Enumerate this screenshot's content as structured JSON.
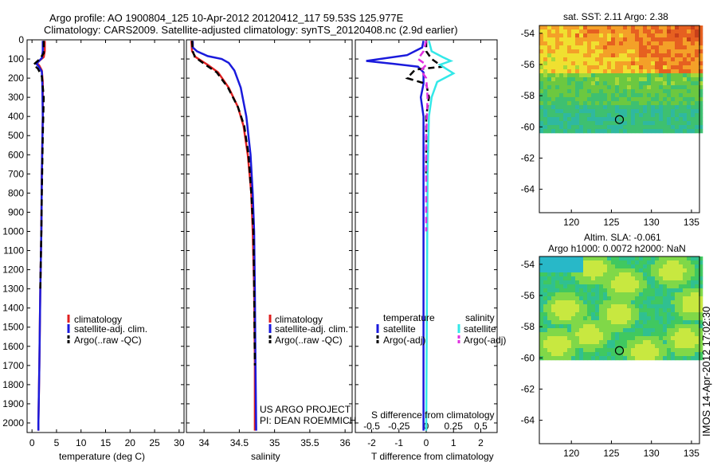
{
  "title": {
    "line1": "Argo profile: AO 1900804_125 10-Apr-2012 20120412_117 59.53S 125.977E",
    "line2": "Climatology: CARS2009. Satellite-adjusted climatology: synTS_20120408.nc (2.9d earlier)"
  },
  "watermark": "IMOS 14-Apr-2012 17:02:30",
  "colors": {
    "climatology": "#e02020",
    "satellite": "#1a1adc",
    "argo": "#000000",
    "sal_satellite": "#33e8e8",
    "sal_argo": "#e030e0"
  },
  "panels": {
    "temperature": {
      "xlabel": "temperature (deg C)",
      "legend": [
        "climatology",
        "satellite-adj. clim.",
        "Argo(..raw -QC)"
      ]
    },
    "salinity": {
      "xlabel": "salinity",
      "legend": [
        "climatology",
        "satellite-adj. clim.",
        "Argo(..raw -QC)"
      ],
      "annotation": [
        "US ARGO PROJECT",
        "PI: DEAN ROEMMICH"
      ]
    },
    "difference": {
      "xlabel": "T difference from climatology",
      "top_label": "S difference from climatology",
      "legend_temp_head": "temperature",
      "legend_sal_head": "salinity",
      "legend_temp": [
        "satellite",
        "Argo(-adj)"
      ],
      "legend_sal": [
        "satellite",
        "Argo(-adj)"
      ]
    },
    "map_sst": {
      "title": "sat. SST: 2.11  Argo: 2.38"
    },
    "map_sla": {
      "title_line1": "Altim. SLA: -0.061",
      "title_line2": "Argo h1000: 0.0072  h2000: NaN"
    }
  },
  "chart_data": [
    {
      "type": "line",
      "id": "temperature",
      "xlabel": "temperature (deg C)",
      "ylabel": "",
      "xlim": [
        -1,
        31
      ],
      "ylim": [
        2050,
        0
      ],
      "xticks": [
        0,
        5,
        10,
        15,
        20,
        25,
        30
      ],
      "yticks": [
        0,
        100,
        200,
        300,
        400,
        500,
        600,
        700,
        800,
        900,
        1000,
        1100,
        1200,
        1300,
        1400,
        1500,
        1600,
        1700,
        1800,
        1900,
        2000
      ],
      "series": [
        {
          "name": "climatology",
          "color": "#e02020",
          "dash": "",
          "points": [
            [
              2.6,
              5
            ],
            [
              2.6,
              60
            ],
            [
              2.4,
              90
            ],
            [
              1.0,
              120
            ],
            [
              1.5,
              135
            ],
            [
              2.0,
              160
            ],
            [
              2.2,
              220
            ],
            [
              2.2,
              400
            ],
            [
              2.0,
              700
            ],
            [
              1.9,
              1000
            ],
            [
              1.7,
              1300
            ],
            [
              1.5,
              1700
            ],
            [
              1.3,
              2000
            ],
            [
              1.3,
              2040
            ]
          ]
        },
        {
          "name": "satellite-adj. clim.",
          "color": "#1a1adc",
          "dash": "",
          "points": [
            [
              2.2,
              5
            ],
            [
              2.2,
              60
            ],
            [
              2.0,
              95
            ],
            [
              0.9,
              125
            ],
            [
              1.4,
              140
            ],
            [
              2.0,
              165
            ],
            [
              2.1,
              230
            ],
            [
              2.2,
              400
            ],
            [
              2.0,
              700
            ],
            [
              1.9,
              1000
            ],
            [
              1.7,
              1300
            ],
            [
              1.5,
              1700
            ],
            [
              1.3,
              2000
            ],
            [
              1.3,
              2040
            ]
          ]
        },
        {
          "name": "Argo(..raw -QC)",
          "color": "#000000",
          "dash": "8,5",
          "points": [
            [
              2.4,
              5
            ],
            [
              2.4,
              70
            ],
            [
              1.6,
              100
            ],
            [
              0.3,
              130
            ],
            [
              1.2,
              150
            ],
            [
              2.0,
              190
            ],
            [
              2.4,
              300
            ],
            [
              2.2,
              500
            ],
            [
              2.0,
              800
            ],
            [
              1.9,
              1000
            ],
            [
              1.7,
              1300
            ]
          ]
        }
      ]
    },
    {
      "type": "line",
      "id": "salinity",
      "xlabel": "salinity",
      "ylabel": "",
      "xlim": [
        33.75,
        36.1
      ],
      "ylim": [
        2050,
        0
      ],
      "xticks": [
        34,
        34.5,
        35,
        35.5,
        36
      ],
      "series": [
        {
          "name": "climatology",
          "color": "#e02020",
          "dash": "",
          "points": [
            [
              33.82,
              5
            ],
            [
              33.83,
              60
            ],
            [
              33.88,
              90
            ],
            [
              34.05,
              130
            ],
            [
              34.2,
              170
            ],
            [
              34.35,
              250
            ],
            [
              34.48,
              350
            ],
            [
              34.56,
              450
            ],
            [
              34.62,
              600
            ],
            [
              34.67,
              800
            ],
            [
              34.69,
              1000
            ],
            [
              34.71,
              1300
            ],
            [
              34.72,
              1700
            ],
            [
              34.72,
              2040
            ]
          ]
        },
        {
          "name": "satellite-adj. clim.",
          "color": "#1a1adc",
          "dash": "",
          "points": [
            [
              33.84,
              5
            ],
            [
              33.84,
              40
            ],
            [
              33.9,
              60
            ],
            [
              34.05,
              85
            ],
            [
              34.25,
              100
            ],
            [
              34.35,
              120
            ],
            [
              34.43,
              160
            ],
            [
              34.52,
              250
            ],
            [
              34.6,
              400
            ],
            [
              34.66,
              600
            ],
            [
              34.69,
              800
            ],
            [
              34.71,
              1000
            ],
            [
              34.72,
              1300
            ],
            [
              34.73,
              1700
            ],
            [
              34.74,
              2040
            ]
          ]
        },
        {
          "name": "Argo(..raw -QC)",
          "color": "#000000",
          "dash": "8,5",
          "points": [
            [
              33.83,
              5
            ],
            [
              33.84,
              60
            ],
            [
              33.87,
              90
            ],
            [
              34.02,
              130
            ],
            [
              34.18,
              170
            ],
            [
              34.34,
              250
            ],
            [
              34.48,
              350
            ],
            [
              34.57,
              450
            ],
            [
              34.63,
              600
            ],
            [
              34.67,
              800
            ],
            [
              34.7,
              1000
            ],
            [
              34.71,
              1300
            ],
            [
              34.72,
              1700
            ]
          ]
        }
      ]
    },
    {
      "type": "line",
      "id": "difference",
      "xlabel": "T difference from climatology",
      "top_label": "S difference from climatology",
      "xlim": [
        -2.6,
        2.6
      ],
      "ylim": [
        2050,
        0
      ],
      "xticks": [
        -2,
        -1,
        0,
        1,
        2
      ],
      "top_ticks": [
        "-0.5",
        "-0.25",
        "0",
        "0.25",
        "0.5"
      ],
      "series": [
        {
          "name": "temperature satellite",
          "color": "#1a1adc",
          "dash": "",
          "points": [
            [
              -0.1,
              5
            ],
            [
              -0.15,
              40
            ],
            [
              -0.7,
              80
            ],
            [
              -2.2,
              110
            ],
            [
              -1.2,
              125
            ],
            [
              -0.3,
              140
            ],
            [
              -0.1,
              170
            ],
            [
              -0.1,
              230
            ],
            [
              -0.2,
              300
            ],
            [
              -0.1,
              400
            ],
            [
              -0.1,
              2040
            ]
          ]
        },
        {
          "name": "temperature Argo(-adj)",
          "color": "#000000",
          "dash": "8,5",
          "points": [
            [
              0.0,
              5
            ],
            [
              0.0,
              60
            ],
            [
              0.2,
              100
            ],
            [
              0.6,
              140
            ],
            [
              -0.4,
              155
            ],
            [
              -0.7,
              200
            ],
            [
              0.0,
              230
            ],
            [
              0.1,
              300
            ],
            [
              0.0,
              400
            ],
            [
              0.0,
              700
            ]
          ]
        },
        {
          "name": "salinity satellite",
          "color": "#33e8e8",
          "dash": "",
          "points": [
            [
              0.1,
              5
            ],
            [
              0.2,
              60
            ],
            [
              0.6,
              90
            ],
            [
              0.9,
              110
            ],
            [
              0.5,
              130
            ],
            [
              1.0,
              175
            ],
            [
              0.4,
              220
            ],
            [
              0.2,
              300
            ],
            [
              0.1,
              400
            ],
            [
              0.05,
              700
            ],
            [
              0.0,
              2040
            ]
          ]
        },
        {
          "name": "salinity Argo(-adj)",
          "color": "#e030e0",
          "dash": "8,5",
          "points": [
            [
              0.0,
              5
            ],
            [
              -0.1,
              60
            ],
            [
              -0.3,
              100
            ],
            [
              0.0,
              130
            ],
            [
              -0.2,
              160
            ],
            [
              0.0,
              200
            ],
            [
              0.05,
              300
            ],
            [
              0.0,
              500
            ],
            [
              0.0,
              1000
            ]
          ]
        }
      ]
    },
    {
      "type": "heatmap",
      "id": "map_sst",
      "title": "sat. SST: 2.11  Argo: 2.38",
      "xlim": [
        116,
        136
      ],
      "ylim": [
        -65.5,
        -53.5
      ],
      "xticks": [
        120,
        125,
        130,
        135
      ],
      "yticks": [
        -54,
        -56,
        -58,
        -60,
        -62,
        -64
      ],
      "data_lat_range": [
        -60.2,
        -53.5
      ],
      "marker": [
        126,
        -59.53
      ],
      "palette": [
        "#2fb8a0",
        "#3ec070",
        "#6cc840",
        "#a8d838",
        "#f0e030",
        "#f4a028",
        "#e66020",
        "#c8401a"
      ]
    },
    {
      "type": "heatmap",
      "id": "map_sla",
      "title": "Altim. SLA: -0.061",
      "xlim": [
        116,
        136
      ],
      "ylim": [
        -65.5,
        -53.5
      ],
      "xticks": [
        120,
        125,
        130,
        135
      ],
      "yticks": [
        -54,
        -56,
        -58,
        -60,
        -62,
        -64
      ],
      "data_lat_range": [
        -60.0,
        -53.5
      ],
      "marker": [
        126,
        -59.53
      ],
      "palette": [
        "#28b8c8",
        "#30c090",
        "#40c860",
        "#80d848",
        "#c8e840"
      ]
    }
  ]
}
